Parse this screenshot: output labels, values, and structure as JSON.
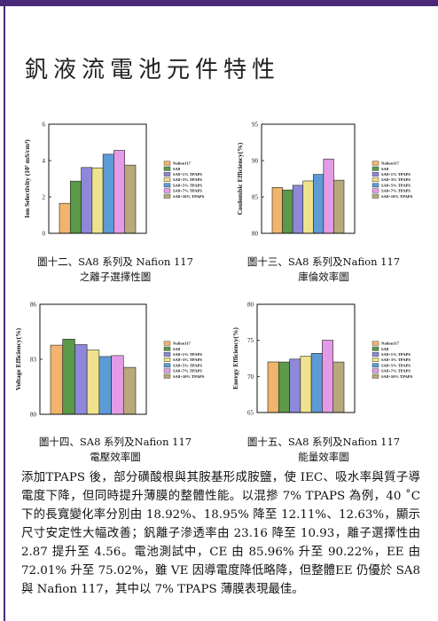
{
  "title": "釩液流電池元件特性",
  "chart_data": [
    {
      "type": "bar",
      "y_label": "Ion Selectivity (10⁷ mS/cm³)",
      "categories": [
        null
      ],
      "ylim": [
        0,
        6
      ],
      "yticks": [
        0,
        2,
        4,
        6
      ],
      "series": [
        {
          "name": "Nafion117",
          "color": "#f2b46c",
          "values": [
            1.65
          ]
        },
        {
          "name": "SA8",
          "color": "#5a9a48",
          "values": [
            2.87
          ]
        },
        {
          "name": "SA8+1% TPAPS",
          "color": "#8f88da",
          "values": [
            3.62
          ]
        },
        {
          "name": "SA8+3% TPAPS",
          "color": "#efe28c",
          "values": [
            3.6
          ]
        },
        {
          "name": "SA8+5% TPAPS",
          "color": "#5d9bd6",
          "values": [
            4.35
          ]
        },
        {
          "name": "SA8+7% TPAPS",
          "color": "#e39be6",
          "values": [
            4.56
          ]
        },
        {
          "name": "SA8+10% TPAPS",
          "color": "#b8a87a",
          "values": [
            3.75
          ]
        }
      ]
    },
    {
      "type": "bar",
      "y_label": "Coulombic Efficiency(%)",
      "categories": [
        null
      ],
      "ylim": [
        80,
        95
      ],
      "yticks": [
        80,
        85,
        90,
        95
      ],
      "series": [
        {
          "name": "Nafion117",
          "color": "#f2b46c",
          "values": [
            86.3
          ]
        },
        {
          "name": "SA8",
          "color": "#5a9a48",
          "values": [
            85.96
          ]
        },
        {
          "name": "SA8+1% TPAPS",
          "color": "#8f88da",
          "values": [
            86.6
          ]
        },
        {
          "name": "SA8+3% TPAPS",
          "color": "#efe28c",
          "values": [
            87.2
          ]
        },
        {
          "name": "SA8+5% TPAPS",
          "color": "#5d9bd6",
          "values": [
            88.1
          ]
        },
        {
          "name": "SA8+7% TPAPS",
          "color": "#e39be6",
          "values": [
            90.22
          ]
        },
        {
          "name": "SA8+10% TPAPS",
          "color": "#b8a87a",
          "values": [
            87.3
          ]
        }
      ]
    },
    {
      "type": "bar",
      "y_label": "Voltage Efficiency(%)",
      "categories": [
        null
      ],
      "ylim": [
        80,
        86
      ],
      "yticks": [
        80,
        83,
        86
      ],
      "series": [
        {
          "name": "Nafion117",
          "color": "#f2b46c",
          "values": [
            83.77
          ]
        },
        {
          "name": "SA8",
          "color": "#5a9a48",
          "values": [
            84.1
          ]
        },
        {
          "name": "SA8+1% TPAPS",
          "color": "#8f88da",
          "values": [
            83.8
          ]
        },
        {
          "name": "SA8+3% TPAPS",
          "color": "#efe28c",
          "values": [
            83.5
          ]
        },
        {
          "name": "SA8+5% TPAPS",
          "color": "#5d9bd6",
          "values": [
            83.15
          ]
        },
        {
          "name": "SA8+7% TPAPS",
          "color": "#e39be6",
          "values": [
            83.2
          ]
        },
        {
          "name": "SA8+10% TPAPS",
          "color": "#b8a87a",
          "values": [
            82.56
          ]
        }
      ]
    },
    {
      "type": "bar",
      "y_label": "Energy Efficiency(%)",
      "categories": [
        null
      ],
      "ylim": [
        65,
        80
      ],
      "yticks": [
        65,
        70,
        75,
        80
      ],
      "series": [
        {
          "name": "Nafion117",
          "color": "#f2b46c",
          "values": [
            72.01
          ]
        },
        {
          "name": "SA8",
          "color": "#5a9a48",
          "values": [
            72.0
          ]
        },
        {
          "name": "SA8+1% TPAPS",
          "color": "#8f88da",
          "values": [
            72.4
          ]
        },
        {
          "name": "SA8+3% TPAPS",
          "color": "#efe28c",
          "values": [
            72.8
          ]
        },
        {
          "name": "SA8+5% TPAPS",
          "color": "#5d9bd6",
          "values": [
            73.2
          ]
        },
        {
          "name": "SA8+7% TPAPS",
          "color": "#e39be6",
          "values": [
            75.02
          ]
        },
        {
          "name": "SA8+10% TPAPS",
          "color": "#b8a87a",
          "values": [
            72.0
          ]
        }
      ]
    }
  ],
  "captions": [
    [
      "圖十二、SA8 系列及 Nafion 117",
      "之離子選擇性圖"
    ],
    [
      "圖十三、SA8 系列及Nafion 117",
      "庫倫效率圖"
    ],
    [
      "圖十四、SA8 系列及Nafion 117",
      "電壓效率圖"
    ],
    [
      "圖十五、SA8 系列及Nafion 117",
      "能量效率圖"
    ]
  ],
  "body": "添加TPAPS 後，部分磺酸根與其胺基形成胺鹽，使 IEC、吸水率與質子導電度下降，但同時提升薄膜的整體性能。以混摻 7% TPAPS 為例，40 ˚C 下的長寬變化率分別由 18.92%、18.95% 降至 12.11%、12.63%，顯示尺寸安定性大幅改善；釩離子滲透率由 23.16 降至 10.93，離子選擇性由 2.87 提升至 4.56。電池測試中，CE 由 85.96% 升至 90.22%，EE 由 72.01% 升至 75.02%，雖 VE 因導電度降低略降，但整體EE 仍優於 SA8 與 Nafion 117，其中以 7% TPAPS 薄膜表現最佳。"
}
